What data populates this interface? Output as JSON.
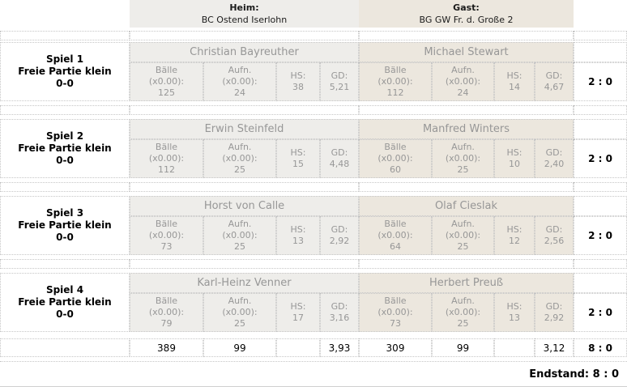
{
  "header": {
    "home_label": "Heim:",
    "home_team": "BC Ostend Iserlohn",
    "guest_label": "Gast:",
    "guest_team": "BG GW Fr. d. Große 2"
  },
  "stat_labels": {
    "balls1": "Bälle",
    "balls2": "(x0.00):",
    "innings1": "Aufn.",
    "innings2": "(x0.00):",
    "hs": "HS:",
    "gd": "GD:"
  },
  "games": [
    {
      "name": "Spiel 1",
      "discipline": "Freie Partie klein",
      "subscore": "0-0",
      "home": {
        "player": "Christian Bayreuther",
        "balls": "125",
        "innings": "24",
        "hs": "38",
        "gd": "5,21"
      },
      "guest": {
        "player": "Michael Stewart",
        "balls": "112",
        "innings": "24",
        "hs": "14",
        "gd": "4,67"
      },
      "score": "2 : 0"
    },
    {
      "name": "Spiel 2",
      "discipline": "Freie Partie klein",
      "subscore": "0-0",
      "home": {
        "player": "Erwin Steinfeld",
        "balls": "112",
        "innings": "25",
        "hs": "15",
        "gd": "4,48"
      },
      "guest": {
        "player": "Manfred Winters",
        "balls": "60",
        "innings": "25",
        "hs": "10",
        "gd": "2,40"
      },
      "score": "2 : 0"
    },
    {
      "name": "Spiel 3",
      "discipline": "Freie Partie klein",
      "subscore": "0-0",
      "home": {
        "player": "Horst von Calle",
        "balls": "73",
        "innings": "25",
        "hs": "13",
        "gd": "2,92"
      },
      "guest": {
        "player": "Olaf Cieslak",
        "balls": "64",
        "innings": "25",
        "hs": "12",
        "gd": "2,56"
      },
      "score": "2 : 0"
    },
    {
      "name": "Spiel 4",
      "discipline": "Freie Partie klein",
      "subscore": "0-0",
      "home": {
        "player": "Karl-Heinz Venner",
        "balls": "79",
        "innings": "25",
        "hs": "17",
        "gd": "3,16"
      },
      "guest": {
        "player": "Herbert Preuß",
        "balls": "73",
        "innings": "25",
        "hs": "13",
        "gd": "2,92"
      },
      "score": "2 : 0"
    }
  ],
  "totals": {
    "home_balls": "389",
    "home_innings": "99",
    "home_gd": "3,93",
    "guest_balls": "309",
    "guest_innings": "99",
    "guest_gd": "3,12",
    "score": "8 : 0"
  },
  "footer": {
    "endstand": "Endstand: 8 : 0"
  },
  "colors": {
    "home_bg": "#eeedea",
    "guest_bg": "#ece7de",
    "text_muted": "#979797"
  }
}
